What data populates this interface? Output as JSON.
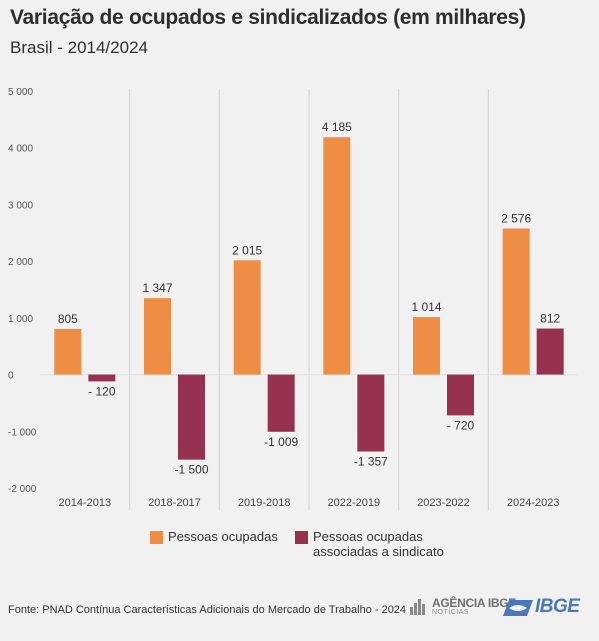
{
  "header": {
    "title": "Variação de ocupados e sindicalizados (em milhares)",
    "subtitle": "Brasil - 2014/2024"
  },
  "chart_data": {
    "type": "bar",
    "categories": [
      "2014-2013",
      "2018-2017",
      "2019-2018",
      "2022-2019",
      "2023-2022",
      "2024-2023"
    ],
    "series": [
      {
        "name": "Pessoas ocupadas",
        "color": "#f08d45",
        "values": [
          805,
          1347,
          2015,
          4185,
          1014,
          2576
        ],
        "labels": [
          "805",
          "1 347",
          "2 015",
          "4 185",
          "1 014",
          "2 576"
        ]
      },
      {
        "name": "Pessoas ocupadas associadas a sindicato",
        "color": "#963250",
        "values": [
          -120,
          -1500,
          -1009,
          -1357,
          -720,
          812
        ],
        "labels": [
          "- 120",
          "-1 500",
          "-1 009",
          "-1 357",
          "- 720",
          "812"
        ]
      }
    ],
    "y_ticks": [
      5000,
      4000,
      3000,
      2000,
      1000,
      0,
      -1000,
      -2000
    ],
    "y_tick_labels": [
      "5 000",
      "4 000",
      "3 000",
      "2 000",
      "1 000",
      "0",
      "-1 000",
      "-2 000"
    ],
    "ylim": [
      -2000,
      5000
    ],
    "grid": "vertical separators between categories",
    "legend_position": "bottom"
  },
  "legend": {
    "item1_line1": "Pessoas ocupadas",
    "item2_line1": "Pessoas ocupadas",
    "item2_line2": "associadas a sindicato"
  },
  "footer": {
    "source": "Fonte: PNAD Contínua Características Adicionais do Mercado de Trabalho - 2024",
    "agencia_name": "AGÊNCIA IBGE",
    "agencia_sub": "NOTÍCIAS",
    "ibge_name": "IBGE"
  }
}
